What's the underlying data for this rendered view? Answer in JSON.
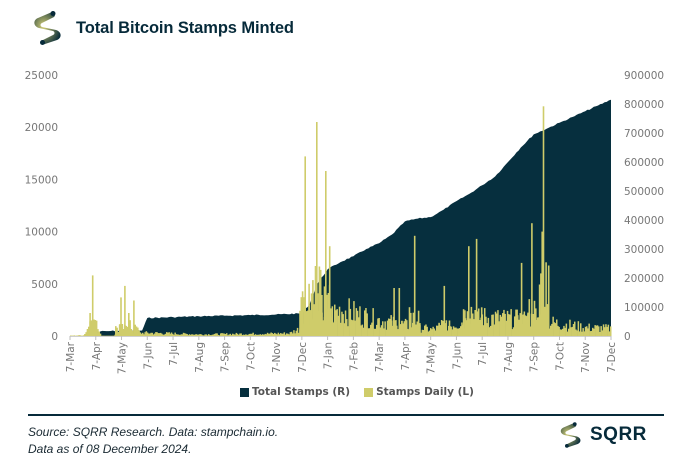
{
  "header": {
    "title": "Total Bitcoin Stamps Minted",
    "logo_icon": "sqrr-s-logo-icon"
  },
  "colors": {
    "total_stamps": "#062f3e",
    "stamps_daily": "#cfcc6a",
    "brand_dark": "#062a3a",
    "axis_text": "#777777"
  },
  "chart_data": {
    "type": "area+bar",
    "title": "Total Bitcoin Stamps Minted",
    "xlabel": "",
    "ylabel_left": "Stamps Daily",
    "ylabel_right": "Total Stamps",
    "x_ticks": [
      "7-Mar",
      "7-Apr",
      "7-May",
      "7-Jun",
      "7-Jul",
      "7-Aug",
      "7-Sep",
      "7-Oct",
      "7-Nov",
      "7-Dec",
      "7-Jan",
      "7-Feb",
      "7-Mar",
      "7-Apr",
      "7-May",
      "7-Jun",
      "7-Jul",
      "7-Aug",
      "7-Sep",
      "7-Oct",
      "7-Nov",
      "7-Dec"
    ],
    "y_left_ticks": [
      "0",
      "5000",
      "10000",
      "15000",
      "20000",
      "25000"
    ],
    "y_right_ticks": [
      "0",
      "100000",
      "200000",
      "300000",
      "400000",
      "500000",
      "600000",
      "700000",
      "800000",
      "900000"
    ],
    "y_left_range": [
      0,
      25000
    ],
    "y_right_range": [
      0,
      900000
    ],
    "grid": false,
    "legend_position": "bottom",
    "series": [
      {
        "name": "Total Stamps (R)",
        "axis": "right",
        "type": "area",
        "x_month_index": [
          0.9,
          1.0,
          1.5,
          2.0,
          2.8,
          3.0,
          4.0,
          5.0,
          6.0,
          7.0,
          8.0,
          9.0,
          9.3,
          9.6,
          10.0,
          10.5,
          11.0,
          11.5,
          12.0,
          12.5,
          13.0,
          13.5,
          14.0,
          14.5,
          15.0,
          15.5,
          16.0,
          16.5,
          17.0,
          17.5,
          18.0,
          18.5,
          19.0,
          19.5,
          20.0,
          20.5,
          21.0
        ],
        "values": [
          0,
          15000,
          17000,
          18000,
          19000,
          62000,
          65000,
          68000,
          70000,
          72000,
          74000,
          78000,
          110000,
          180000,
          230000,
          255000,
          275000,
          300000,
          320000,
          350000,
          395000,
          405000,
          410000,
          435000,
          465000,
          490000,
          520000,
          550000,
          600000,
          650000,
          695000,
          715000,
          735000,
          755000,
          775000,
          795000,
          815000
        ]
      },
      {
        "name": "Stamps Daily (L)",
        "axis": "left",
        "type": "bar",
        "spikes": [
          {
            "x_month_index": 0.75,
            "value": 2200
          },
          {
            "x_month_index": 0.85,
            "value": 5800
          },
          {
            "x_month_index": 0.95,
            "value": 1500
          },
          {
            "x_month_index": 1.95,
            "value": 3700
          },
          {
            "x_month_index": 2.1,
            "value": 4800
          },
          {
            "x_month_index": 2.25,
            "value": 2200
          },
          {
            "x_month_index": 2.45,
            "value": 3400
          },
          {
            "x_month_index": 2.6,
            "value": 800
          },
          {
            "x_month_index": 9.1,
            "value": 17200
          },
          {
            "x_month_index": 9.25,
            "value": 5000
          },
          {
            "x_month_index": 9.55,
            "value": 20500
          },
          {
            "x_month_index": 9.9,
            "value": 15800
          },
          {
            "x_month_index": 10.05,
            "value": 8600
          },
          {
            "x_month_index": 12.55,
            "value": 4600
          },
          {
            "x_month_index": 12.75,
            "value": 4600
          },
          {
            "x_month_index": 13.35,
            "value": 9600
          },
          {
            "x_month_index": 14.5,
            "value": 4800
          },
          {
            "x_month_index": 15.45,
            "value": 8600
          },
          {
            "x_month_index": 15.75,
            "value": 9300
          },
          {
            "x_month_index": 17.5,
            "value": 7000
          },
          {
            "x_month_index": 17.9,
            "value": 10800
          },
          {
            "x_month_index": 18.35,
            "value": 22000
          },
          {
            "x_month_index": 18.3,
            "value": 10000
          }
        ],
        "baseline_values": [
          {
            "x_month_index": 0.0,
            "value": 30
          },
          {
            "x_month_index": 3.0,
            "value": 300
          },
          {
            "x_month_index": 5.0,
            "value": 150
          },
          {
            "x_month_index": 8.5,
            "value": 250
          },
          {
            "x_month_index": 10.5,
            "value": 2500
          },
          {
            "x_month_index": 12.0,
            "value": 1500
          },
          {
            "x_month_index": 14.0,
            "value": 600
          },
          {
            "x_month_index": 16.0,
            "value": 1800
          },
          {
            "x_month_index": 18.0,
            "value": 1500
          },
          {
            "x_month_index": 20.0,
            "value": 800
          },
          {
            "x_month_index": 21.0,
            "value": 700
          }
        ]
      }
    ]
  },
  "legend": {
    "items": [
      {
        "label": "Total Stamps (R)"
      },
      {
        "label": "Stamps Daily (L)"
      }
    ]
  },
  "footer": {
    "source_line1": "Source: SQRR Research. Data: stampchain.io.",
    "source_line2": "Data as of 08 December 2024.",
    "brand": "SQRR"
  }
}
